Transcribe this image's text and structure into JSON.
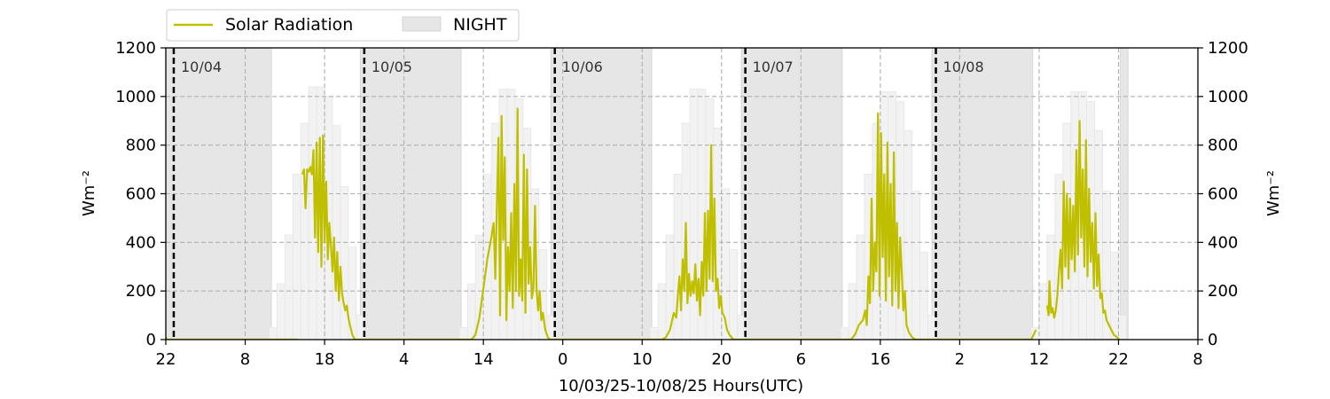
{
  "chart_data": {
    "type": "line",
    "xlabel": "10/03/25-10/08/25  Hours(UTC)",
    "ylabel": "Wm⁻²",
    "ylabel_right": "Wm⁻²",
    "ylim": [
      0,
      1200
    ],
    "yticks": [
      0,
      200,
      400,
      600,
      800,
      1000,
      1200
    ],
    "xlim": [
      22,
      152
    ],
    "xticks": [
      {
        "hour": 22,
        "label": "22"
      },
      {
        "hour": 32,
        "label": "8"
      },
      {
        "hour": 42,
        "label": "18"
      },
      {
        "hour": 52,
        "label": "4"
      },
      {
        "hour": 62,
        "label": "14"
      },
      {
        "hour": 72,
        "label": "0"
      },
      {
        "hour": 82,
        "label": "10"
      },
      {
        "hour": 92,
        "label": "20"
      },
      {
        "hour": 102,
        "label": "6"
      },
      {
        "hour": 112,
        "label": "16"
      },
      {
        "hour": 122,
        "label": "2"
      },
      {
        "hour": 132,
        "label": "12"
      },
      {
        "hour": 142,
        "label": "22"
      },
      {
        "hour": 152,
        "label": "8"
      }
    ],
    "grid": true,
    "legend": {
      "placement": "top-left, above plot",
      "items": [
        {
          "label": "Solar Radiation",
          "color": "#bfbf00",
          "kind": "line"
        },
        {
          "label": "NIGHT",
          "color": "#e6e6e6",
          "kind": "patch"
        }
      ]
    },
    "day_boundaries": [
      {
        "hour": 23,
        "label": "10/04"
      },
      {
        "hour": 47,
        "label": "10/05"
      },
      {
        "hour": 71,
        "label": "10/06"
      },
      {
        "hour": 95,
        "label": "10/07"
      },
      {
        "hour": 119,
        "label": "10/08"
      }
    ],
    "night_periods": [
      [
        22,
        35.3
      ],
      [
        46.5,
        59.2
      ],
      [
        70.5,
        83.2
      ],
      [
        94.5,
        107.2
      ],
      [
        118.5,
        131.2
      ],
      [
        142.2,
        143.2
      ]
    ],
    "clear_sky_series": {
      "name": "",
      "color": "#f2f2f2",
      "start_hour": 35,
      "step_hours": 1,
      "days": [
        [
          50,
          230,
          430,
          680,
          890,
          1040,
          1040,
          1000,
          880,
          630,
          380,
          100
        ],
        [
          50,
          230,
          430,
          680,
          890,
          1030,
          1030,
          990,
          870,
          620,
          370,
          100
        ],
        [
          50,
          230,
          430,
          680,
          890,
          1030,
          1030,
          990,
          870,
          620,
          370,
          100
        ],
        [
          50,
          230,
          430,
          680,
          890,
          1020,
          1020,
          980,
          860,
          610,
          360,
          100
        ],
        [
          50,
          230,
          430,
          680,
          890,
          1020,
          1020,
          980,
          860,
          610,
          360,
          100
        ]
      ]
    },
    "series": [
      {
        "name": "Solar Radiation",
        "color": "#bfbf00",
        "segments": [
          [
            [
              22,
              10
            ],
            [
              22.1,
              0
            ],
            [
              38.6,
              0
            ]
          ],
          [
            [
              39.2,
              680
            ],
            [
              39.4,
              700
            ],
            [
              39.6,
              540
            ],
            [
              39.8,
              700
            ],
            [
              40.0,
              690
            ],
            [
              40.2,
              710
            ],
            [
              40.4,
              680
            ],
            [
              40.6,
              780
            ],
            [
              40.8,
              420
            ],
            [
              41.0,
              810
            ],
            [
              41.2,
              360
            ],
            [
              41.4,
              830
            ],
            [
              41.6,
              300
            ],
            [
              41.8,
              840
            ],
            [
              42.0,
              400
            ],
            [
              42.2,
              650
            ],
            [
              42.4,
              330
            ],
            [
              42.6,
              480
            ],
            [
              42.8,
              390
            ],
            [
              43.0,
              280
            ],
            [
              43.2,
              420
            ],
            [
              43.4,
              200
            ],
            [
              43.6,
              360
            ],
            [
              43.8,
              160
            ],
            [
              44.0,
              300
            ],
            [
              44.2,
              190
            ],
            [
              44.4,
              150
            ],
            [
              44.6,
              120
            ],
            [
              44.8,
              140
            ],
            [
              45.0,
              90
            ],
            [
              45.2,
              60
            ],
            [
              45.5,
              20
            ],
            [
              45.8,
              0
            ],
            [
              60.5,
              0
            ],
            [
              61.0,
              20
            ],
            [
              61.5,
              90
            ],
            [
              62.0,
              210
            ],
            [
              62.5,
              330
            ],
            [
              63.0,
              420
            ],
            [
              63.3,
              480
            ],
            [
              63.5,
              250
            ],
            [
              63.7,
              550
            ],
            [
              63.9,
              830
            ],
            [
              64.1,
              100
            ],
            [
              64.3,
              920
            ],
            [
              64.5,
              410
            ],
            [
              64.7,
              750
            ],
            [
              64.9,
              80
            ],
            [
              65.1,
              380
            ],
            [
              65.3,
              200
            ],
            [
              65.5,
              520
            ],
            [
              65.7,
              130
            ],
            [
              65.9,
              640
            ],
            [
              66.1,
              200
            ],
            [
              66.3,
              950
            ],
            [
              66.5,
              180
            ],
            [
              66.7,
              330
            ],
            [
              66.9,
              160
            ],
            [
              67.1,
              760
            ],
            [
              67.3,
              110
            ],
            [
              67.5,
              700
            ],
            [
              67.7,
              230
            ],
            [
              67.9,
              380
            ],
            [
              68.1,
              170
            ],
            [
              68.3,
              210
            ],
            [
              68.5,
              550
            ],
            [
              68.7,
              210
            ],
            [
              68.9,
              120
            ],
            [
              69.1,
              200
            ],
            [
              69.3,
              80
            ],
            [
              69.5,
              110
            ],
            [
              69.8,
              40
            ],
            [
              70.1,
              10
            ],
            [
              70.4,
              0
            ],
            [
              84.5,
              0
            ],
            [
              85.0,
              10
            ],
            [
              85.5,
              40
            ],
            [
              86.0,
              110
            ],
            [
              86.3,
              90
            ],
            [
              86.5,
              180
            ],
            [
              86.7,
              260
            ],
            [
              86.9,
              120
            ],
            [
              87.1,
              330
            ],
            [
              87.3,
              200
            ],
            [
              87.5,
              480
            ],
            [
              87.7,
              150
            ],
            [
              87.9,
              270
            ],
            [
              88.1,
              180
            ],
            [
              88.3,
              240
            ],
            [
              88.5,
              190
            ],
            [
              88.7,
              310
            ],
            [
              88.9,
              160
            ],
            [
              89.1,
              250
            ],
            [
              89.3,
              100
            ],
            [
              89.5,
              320
            ],
            [
              89.7,
              180
            ],
            [
              89.9,
              520
            ],
            [
              90.1,
              200
            ],
            [
              90.3,
              530
            ],
            [
              90.5,
              250
            ],
            [
              90.7,
              800
            ],
            [
              90.9,
              240
            ],
            [
              91.1,
              580
            ],
            [
              91.3,
              200
            ],
            [
              91.5,
              250
            ],
            [
              91.7,
              130
            ],
            [
              91.9,
              180
            ],
            [
              92.1,
              110
            ],
            [
              92.4,
              90
            ],
            [
              92.7,
              40
            ],
            [
              93.0,
              20
            ],
            [
              93.5,
              0
            ],
            [
              108.3,
              0
            ],
            [
              108.8,
              20
            ],
            [
              109.3,
              60
            ],
            [
              109.8,
              80
            ],
            [
              110.1,
              120
            ],
            [
              110.3,
              60
            ],
            [
              110.5,
              260
            ],
            [
              110.7,
              150
            ],
            [
              110.9,
              580
            ],
            [
              111.1,
              200
            ],
            [
              111.3,
              400
            ],
            [
              111.5,
              280
            ],
            [
              111.7,
              930
            ],
            [
              111.9,
              180
            ],
            [
              112.1,
              850
            ],
            [
              112.3,
              340
            ],
            [
              112.5,
              680
            ],
            [
              112.7,
              160
            ],
            [
              112.9,
              810
            ],
            [
              113.1,
              260
            ],
            [
              113.3,
              640
            ],
            [
              113.5,
              140
            ],
            [
              113.7,
              770
            ],
            [
              113.9,
              200
            ],
            [
              114.1,
              480
            ],
            [
              114.3,
              130
            ],
            [
              114.5,
              420
            ],
            [
              114.7,
              280
            ],
            [
              114.9,
              120
            ],
            [
              115.1,
              200
            ],
            [
              115.3,
              60
            ],
            [
              115.6,
              30
            ],
            [
              116.0,
              10
            ],
            [
              116.4,
              0
            ],
            [
              119.5,
              0
            ],
            [
              131.0,
              0
            ],
            [
              131.3,
              20
            ],
            [
              131.6,
              40
            ]
          ],
          [
            [
              133.0,
              140
            ],
            [
              133.2,
              100
            ],
            [
              133.3,
              240
            ],
            [
              133.5,
              110
            ],
            [
              133.7,
              130
            ],
            [
              133.9,
              90
            ],
            [
              134.1,
              120
            ],
            [
              134.3,
              180
            ],
            [
              134.5,
              280
            ],
            [
              134.7,
              370
            ],
            [
              134.9,
              210
            ],
            [
              135.1,
              650
            ],
            [
              135.3,
              300
            ],
            [
              135.5,
              600
            ],
            [
              135.7,
              250
            ],
            [
              135.9,
              580
            ],
            [
              136.1,
              330
            ],
            [
              136.3,
              550
            ],
            [
              136.5,
              280
            ],
            [
              136.7,
              780
            ],
            [
              136.9,
              350
            ],
            [
              137.1,
              900
            ],
            [
              137.3,
              420
            ],
            [
              137.5,
              700
            ],
            [
              137.7,
              300
            ],
            [
              137.9,
              820
            ],
            [
              138.1,
              260
            ],
            [
              138.3,
              620
            ],
            [
              138.5,
              320
            ],
            [
              138.7,
              480
            ],
            [
              138.9,
              210
            ],
            [
              139.1,
              520
            ],
            [
              139.3,
              220
            ],
            [
              139.5,
              350
            ],
            [
              139.7,
              170
            ],
            [
              139.9,
              190
            ],
            [
              140.1,
              110
            ],
            [
              140.3,
              120
            ],
            [
              140.5,
              80
            ],
            [
              140.8,
              60
            ],
            [
              141.1,
              40
            ],
            [
              141.4,
              20
            ],
            [
              141.8,
              10
            ],
            [
              142.1,
              0
            ]
          ]
        ]
      }
    ]
  }
}
